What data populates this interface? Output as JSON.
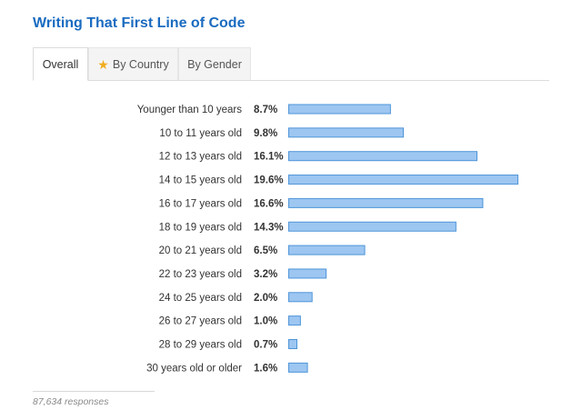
{
  "title": "Writing That First Line of Code",
  "tabs": [
    {
      "label": "Overall",
      "active": true,
      "icon": ""
    },
    {
      "label": "By Country",
      "active": false,
      "icon": "star-icon"
    },
    {
      "label": "By Gender",
      "active": false,
      "icon": ""
    }
  ],
  "colors": {
    "title": "#1a6bc0",
    "bar_fill": "#9dc6f1",
    "bar_stroke": "#4e95d9",
    "star": "#f0ad1f"
  },
  "chart_data": {
    "type": "bar",
    "orientation": "horizontal",
    "categories": [
      "Younger than 10 years",
      "10 to 11 years old",
      "12 to 13 years old",
      "14 to 15 years old",
      "16 to 17 years old",
      "18 to 19 years old",
      "20 to 21 years old",
      "22 to 23 years old",
      "24 to 25 years old",
      "26 to 27 years old",
      "28 to 29 years old",
      "30 years old or older"
    ],
    "values": [
      8.7,
      9.8,
      16.1,
      19.6,
      16.6,
      14.3,
      6.5,
      3.2,
      2.0,
      1.0,
      0.7,
      1.6
    ],
    "value_labels": [
      "8.7%",
      "9.8%",
      "16.1%",
      "19.6%",
      "16.6%",
      "14.3%",
      "6.5%",
      "3.2%",
      "2.0%",
      "1.0%",
      "0.7%",
      "1.6%"
    ],
    "title": "",
    "xlabel": "",
    "ylabel": "",
    "grid": false
  },
  "footer": "87,634 responses"
}
